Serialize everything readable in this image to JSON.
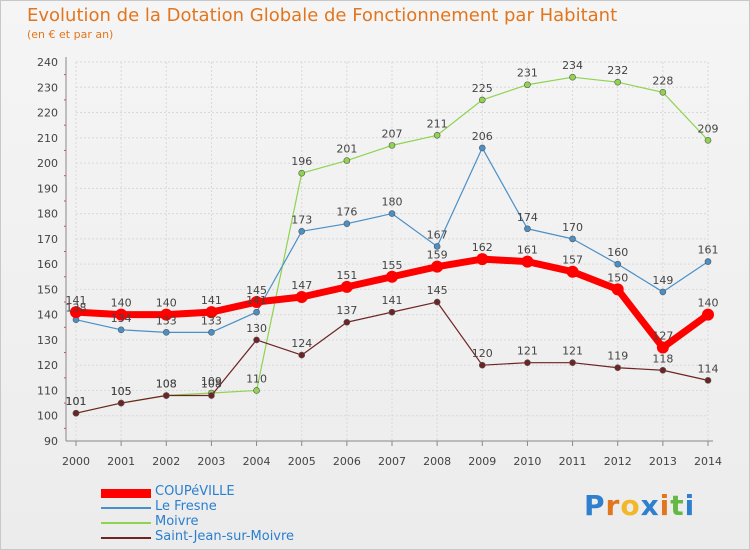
{
  "title": "Evolution de la Dotation Globale de Fonctionnement par Habitant",
  "subtitle": "(en € et par an)",
  "logo_text": "Proxiti",
  "colors": {
    "title": "#e2761e",
    "grid": "#d9d9d9",
    "axis": "#888888",
    "label": "#444444",
    "legend_text": "#2a7fd0"
  },
  "chart_data": {
    "type": "line",
    "title": "Evolution de la Dotation Globale de Fonctionnement par Habitant",
    "subtitle": "(en € et par an)",
    "x": [
      "2000",
      "2001",
      "2002",
      "2003",
      "2004",
      "2005",
      "2006",
      "2007",
      "2008",
      "2009",
      "2010",
      "2011",
      "2012",
      "2013",
      "2014"
    ],
    "ylim": [
      90,
      240
    ],
    "yticks": [
      90,
      100,
      110,
      120,
      130,
      140,
      150,
      160,
      170,
      180,
      190,
      200,
      210,
      220,
      230,
      240
    ],
    "grid": true,
    "legend": "bottom-left",
    "series": [
      {
        "name": "COUPéVILLE",
        "color": "#ff0000",
        "width": 7,
        "marker": 6,
        "values": [
          141,
          140,
          140,
          141,
          145,
          147,
          151,
          155,
          159,
          162,
          161,
          157,
          150,
          127,
          140
        ]
      },
      {
        "name": "Le Fresne",
        "color": "#4a90c8",
        "width": 1.2,
        "marker": 3,
        "values": [
          138,
          134,
          133,
          133,
          141,
          173,
          176,
          180,
          167,
          206,
          174,
          170,
          160,
          149,
          161
        ]
      },
      {
        "name": "Moivre",
        "color": "#8fd34f",
        "width": 1.2,
        "marker": 3,
        "values": [
          101,
          105,
          108,
          109,
          110,
          196,
          201,
          207,
          211,
          225,
          231,
          234,
          232,
          228,
          209
        ]
      },
      {
        "name": "Saint-Jean-sur-Moivre",
        "color": "#6e2424",
        "width": 1.2,
        "marker": 3,
        "values": [
          101,
          105,
          108,
          108,
          130,
          124,
          137,
          141,
          145,
          120,
          121,
          121,
          119,
          118,
          114
        ]
      }
    ]
  }
}
